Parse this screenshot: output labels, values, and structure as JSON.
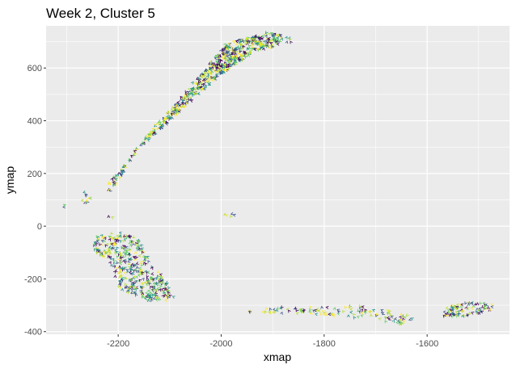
{
  "chart_data": {
    "type": "scatter",
    "title": "Week 2, Cluster 5",
    "xlabel": "xmap",
    "ylabel": "ymap",
    "xlim": [
      -2340,
      -1440
    ],
    "ylim": [
      -410,
      760
    ],
    "x_ticks": [
      -2200,
      -2000,
      -1800,
      -1600
    ],
    "y_ticks": [
      600,
      400,
      200,
      0,
      -200,
      -400
    ],
    "x_tick_labels": [
      "-2200",
      "-2000",
      "-1800",
      "-1600"
    ],
    "y_tick_labels": [
      "600",
      "400",
      "200",
      "0",
      "-200",
      "-400"
    ],
    "grid": true,
    "background": "#ebebeb",
    "grid_color": "#ffffff",
    "marker": "arrow-glyph",
    "palette": [
      "#440154",
      "#3b528b",
      "#21918c",
      "#5ec962",
      "#b5de2b",
      "#fde725"
    ],
    "regions": [
      {
        "poly": [
          [
            -2225,
            150
          ],
          [
            -2160,
            310
          ],
          [
            -2040,
            580
          ],
          [
            -1990,
            700
          ],
          [
            -1905,
            735
          ],
          [
            -1880,
            730
          ],
          [
            -1890,
            690
          ],
          [
            -1940,
            660
          ],
          [
            -2010,
            560
          ],
          [
            -2070,
            460
          ],
          [
            -2110,
            380
          ],
          [
            -2160,
            300
          ],
          [
            -2210,
            150
          ]
        ],
        "n": 850
      },
      {
        "poly": [
          [
            -2245,
            -40
          ],
          [
            -2200,
            -15
          ],
          [
            -2160,
            -50
          ],
          [
            -2140,
            -130
          ],
          [
            -2110,
            -200
          ],
          [
            -2090,
            -280
          ],
          [
            -2140,
            -280
          ],
          [
            -2200,
            -240
          ],
          [
            -2210,
            -150
          ],
          [
            -2250,
            -90
          ]
        ],
        "n": 420
      },
      {
        "poly": [
          [
            -1950,
            -310
          ],
          [
            -1700,
            -300
          ],
          [
            -1660,
            -330
          ],
          [
            -1620,
            -350
          ],
          [
            -1650,
            -370
          ],
          [
            -1750,
            -345
          ],
          [
            -1850,
            -330
          ],
          [
            -1950,
            -325
          ]
        ],
        "n": 120
      },
      {
        "poly": [
          [
            -1570,
            -310
          ],
          [
            -1530,
            -285
          ],
          [
            -1470,
            -295
          ],
          [
            -1480,
            -320
          ],
          [
            -1530,
            -345
          ],
          [
            -1570,
            -340
          ]
        ],
        "n": 90
      },
      {
        "poly": [
          [
            -2270,
            130
          ],
          [
            -2250,
            120
          ],
          [
            -2245,
            95
          ],
          [
            -2255,
            80
          ],
          [
            -2275,
            100
          ]
        ],
        "n": 10
      },
      {
        "poly": [
          [
            -1895,
            730
          ],
          [
            -1870,
            728
          ],
          [
            -1862,
            700
          ],
          [
            -1885,
            700
          ]
        ],
        "n": 8
      },
      {
        "poly": [
          [
            -1995,
            50
          ],
          [
            -1975,
            48
          ],
          [
            -1970,
            35
          ],
          [
            -1990,
            35
          ]
        ],
        "n": 5
      },
      {
        "poly": [
          [
            -2310,
            85
          ],
          [
            -2303,
            85
          ],
          [
            -2303,
            70
          ],
          [
            -2310,
            70
          ]
        ],
        "n": 2
      },
      {
        "poly": [
          [
            -2230,
            150
          ],
          [
            -2215,
            150
          ],
          [
            -2215,
            130
          ],
          [
            -2230,
            130
          ]
        ],
        "n": 4
      },
      {
        "poly": [
          [
            -2220,
            45
          ],
          [
            -2210,
            45
          ],
          [
            -2210,
            30
          ],
          [
            -2220,
            30
          ]
        ],
        "n": 2
      }
    ]
  }
}
